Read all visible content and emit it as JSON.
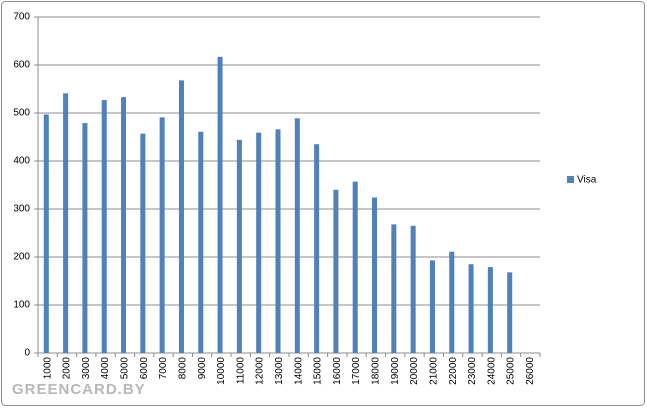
{
  "chart_data": {
    "type": "bar",
    "categories": [
      "1000",
      "2000",
      "3000",
      "4000",
      "5000",
      "6000",
      "7000",
      "8000",
      "9000",
      "10000",
      "11000",
      "12000",
      "13000",
      "14000",
      "15000",
      "16000",
      "17000",
      "18000",
      "19000",
      "20000",
      "21000",
      "22000",
      "23000",
      "24000",
      "25000",
      "26000"
    ],
    "series": [
      {
        "name": "Visa",
        "color": "#4f81bd",
        "values": [
          497,
          541,
          479,
          527,
          533,
          457,
          491,
          568,
          461,
          617,
          444,
          459,
          466,
          489,
          435,
          340,
          357,
          324,
          268,
          265,
          193,
          211,
          185,
          179,
          168,
          null
        ]
      }
    ],
    "ylim": [
      0,
      700
    ],
    "yticks": [
      0,
      100,
      200,
      300,
      400,
      500,
      600,
      700
    ],
    "grid": true,
    "legend": "right",
    "watermark": "GREENCARD.BY"
  }
}
